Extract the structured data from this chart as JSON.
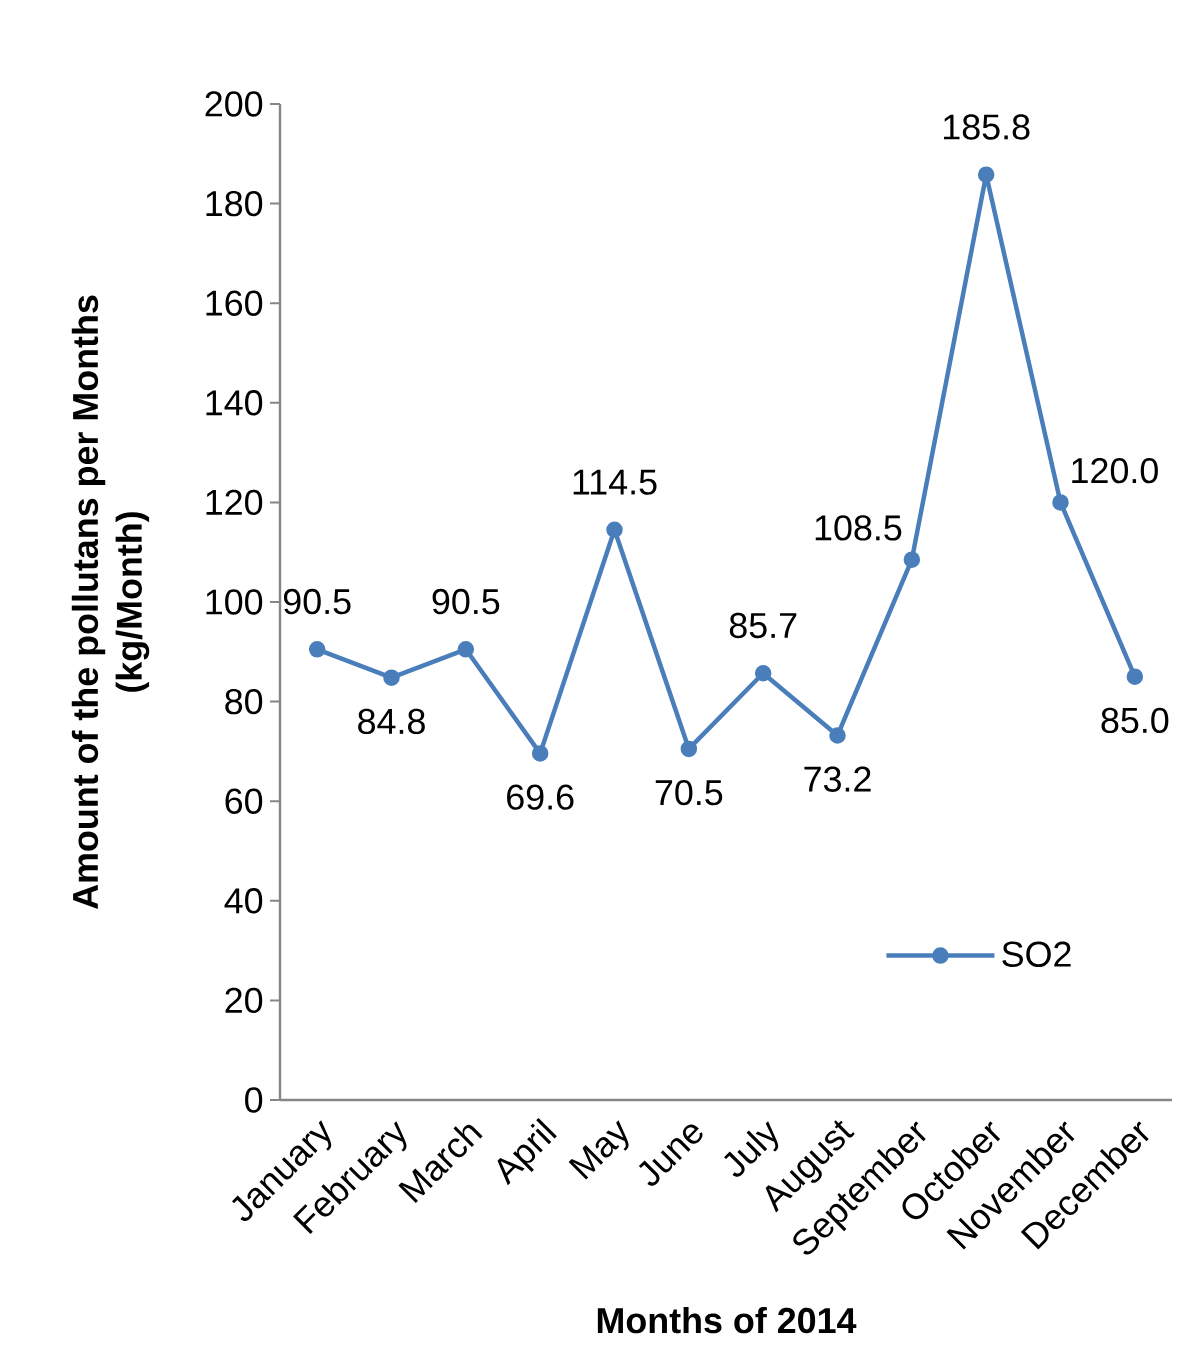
{
  "chart_data": {
    "type": "line",
    "xlabel": "Months of 2014",
    "ylabel": "Amount of the pollutans per Months (kg/Month)",
    "categories": [
      "January",
      "February",
      "March",
      "April",
      "May",
      "June",
      "July",
      "August",
      "September",
      "October",
      "November",
      "December"
    ],
    "series": [
      {
        "name": "SO2",
        "color": "#4a7ebb",
        "values": [
          90.5,
          84.8,
          90.5,
          69.6,
          114.5,
          70.5,
          85.7,
          73.2,
          108.5,
          185.8,
          120.0,
          85.0
        ],
        "value_labels": [
          "90.5",
          "84.8",
          "90.5",
          "69.6",
          "114.5",
          "70.5",
          "85.7",
          "73.2",
          "108.5",
          "185.8",
          "120.0",
          "85.0"
        ]
      }
    ],
    "ylim": [
      0,
      200
    ],
    "yticks": [
      0,
      20,
      40,
      60,
      80,
      100,
      120,
      140,
      160,
      180,
      200
    ],
    "grid": false,
    "legend": "bottom right",
    "marker": "circle",
    "line_style": "solid"
  }
}
